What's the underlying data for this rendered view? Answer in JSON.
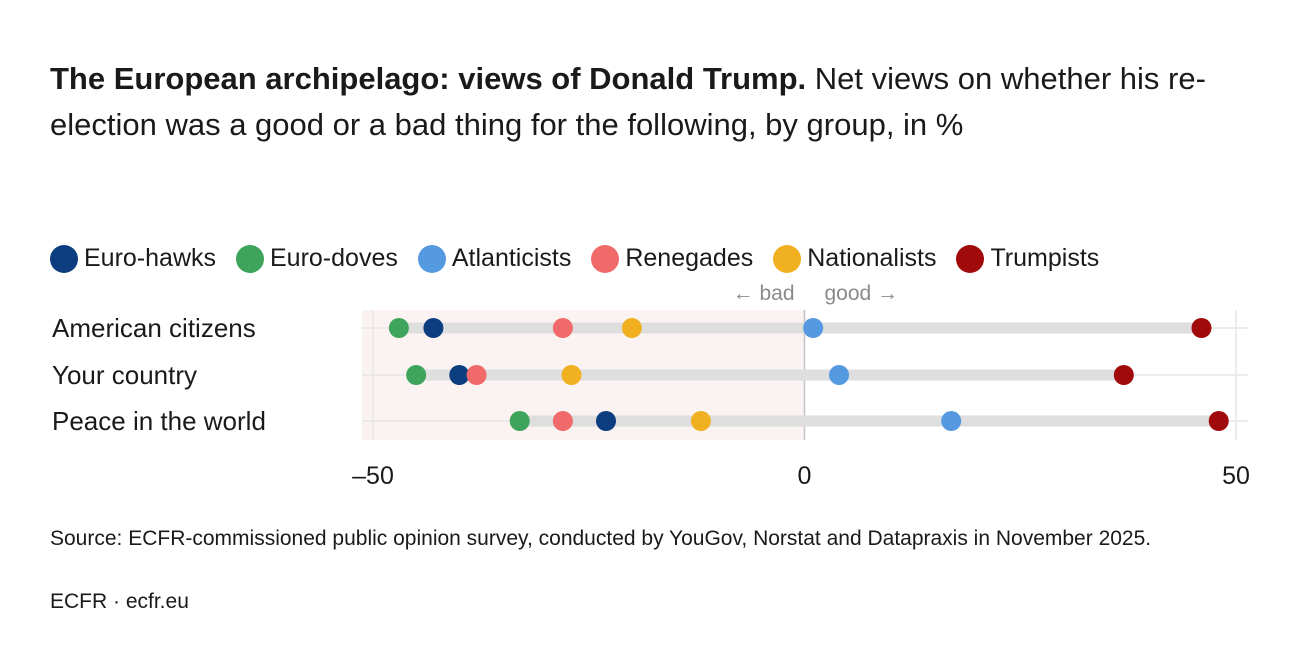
{
  "title": {
    "bold": "The European archipelago: views of Donald Trump.",
    "rest": "Net views on whether his re-election was a good or a bad thing for the following, by group, in %"
  },
  "direction": {
    "bad": "← bad",
    "good": "good →"
  },
  "source": "Source: ECFR-commissioned public opinion survey, conducted by YouGov, Norstat and Datapraxis in November 2025.",
  "credit": "ECFR · ecfr.eu",
  "chart_data": {
    "type": "scatter",
    "orientation": "horizontal dot plot",
    "categories": [
      "American citizens",
      "Your country",
      "Peace in the world"
    ],
    "xlim": [
      -50,
      50
    ],
    "x_ticks": [
      -50,
      0,
      50
    ],
    "x_tick_labels": [
      "–50",
      "0",
      "50"
    ],
    "grid": true,
    "legend_position": "top-left",
    "series": [
      {
        "name": "Euro-hawks",
        "color": "#0b3d7f",
        "values": [
          -43,
          -40,
          -23
        ]
      },
      {
        "name": "Euro-doves",
        "color": "#3fa45b",
        "values": [
          -47,
          -45,
          -33
        ]
      },
      {
        "name": "Atlanticists",
        "color": "#5599e0",
        "values": [
          1,
          4,
          17
        ]
      },
      {
        "name": "Renegades",
        "color": "#f06a6a",
        "values": [
          -28,
          -38,
          -28
        ]
      },
      {
        "name": "Nationalists",
        "color": "#f0b020",
        "values": [
          -20,
          -27,
          -12
        ]
      },
      {
        "name": "Trumpists",
        "color": "#a10a0a",
        "values": [
          46,
          37,
          48
        ]
      }
    ]
  }
}
